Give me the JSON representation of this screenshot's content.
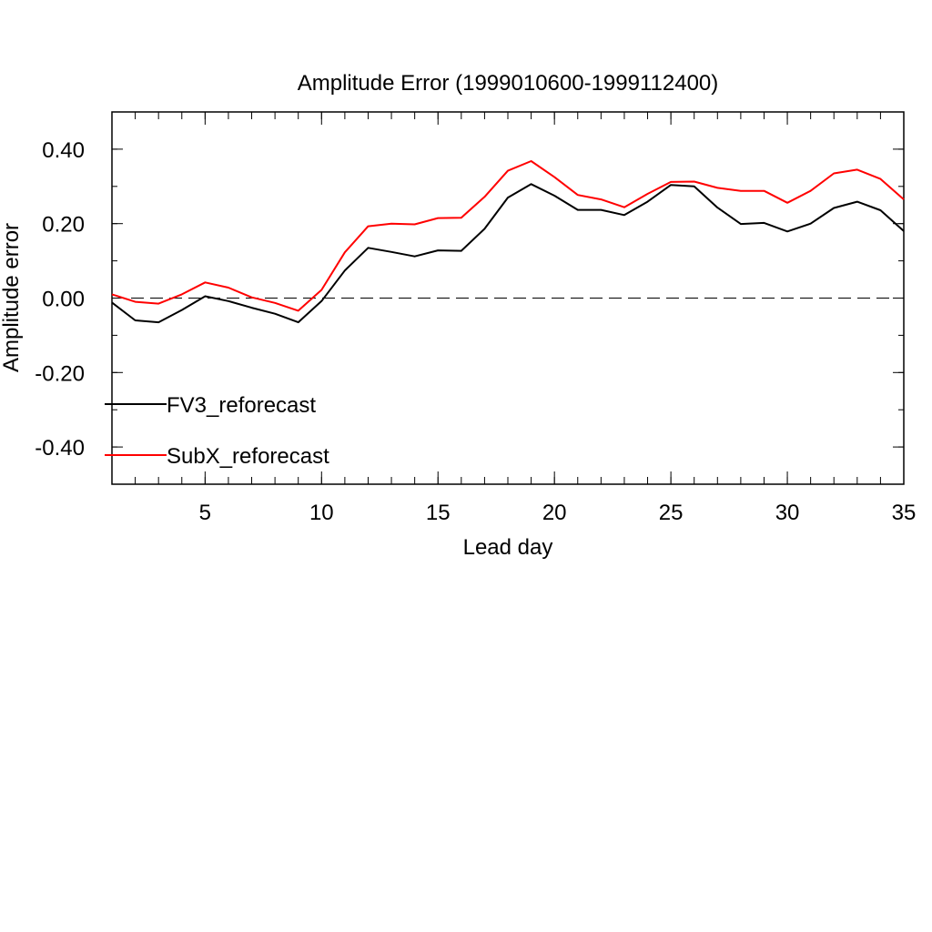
{
  "chart_data": {
    "type": "line",
    "title": "Amplitude Error (1999010600-1999112400)",
    "xlabel": "Lead day",
    "ylabel": "Amplitude error",
    "xlim": [
      1,
      35
    ],
    "ylim": [
      -0.5,
      0.5
    ],
    "xticks": [
      5,
      10,
      15,
      20,
      25,
      30,
      35
    ],
    "xtick_labels": [
      "5",
      "10",
      "15",
      "20",
      "25",
      "30",
      "35"
    ],
    "yticks": [
      -0.4,
      -0.2,
      0.0,
      0.2,
      0.4
    ],
    "ytick_labels": [
      "-0.40",
      "-0.20",
      "0.00",
      "0.20",
      "0.40"
    ],
    "reference_line": {
      "y": 0.0,
      "style": "dashed"
    },
    "legend_placement": "lower-left",
    "grid": false,
    "x": [
      1,
      2,
      3,
      4,
      5,
      6,
      7,
      8,
      9,
      10,
      11,
      12,
      13,
      14,
      15,
      16,
      17,
      18,
      19,
      20,
      21,
      22,
      23,
      24,
      25,
      26,
      27,
      28,
      29,
      30,
      31,
      32,
      33,
      34,
      35
    ],
    "series": [
      {
        "name": "FV3_reforecast",
        "color": "#000000",
        "values": [
          -0.012,
          -0.06,
          -0.065,
          -0.032,
          0.005,
          -0.008,
          -0.026,
          -0.042,
          -0.065,
          -0.008,
          0.074,
          0.135,
          0.124,
          0.112,
          0.128,
          0.127,
          0.186,
          0.27,
          0.306,
          0.275,
          0.237,
          0.237,
          0.223,
          0.259,
          0.304,
          0.3,
          0.243,
          0.199,
          0.202,
          0.179,
          0.2,
          0.242,
          0.259,
          0.236,
          0.18
        ]
      },
      {
        "name": "SubX_reforecast",
        "color": "#ff0000",
        "values": [
          0.01,
          -0.01,
          -0.015,
          0.01,
          0.042,
          0.028,
          0.002,
          -0.013,
          -0.034,
          0.022,
          0.123,
          0.193,
          0.2,
          0.198,
          0.215,
          0.216,
          0.272,
          0.342,
          0.368,
          0.325,
          0.277,
          0.265,
          0.244,
          0.28,
          0.312,
          0.313,
          0.296,
          0.288,
          0.288,
          0.256,
          0.288,
          0.335,
          0.345,
          0.32,
          0.265
        ]
      }
    ]
  }
}
